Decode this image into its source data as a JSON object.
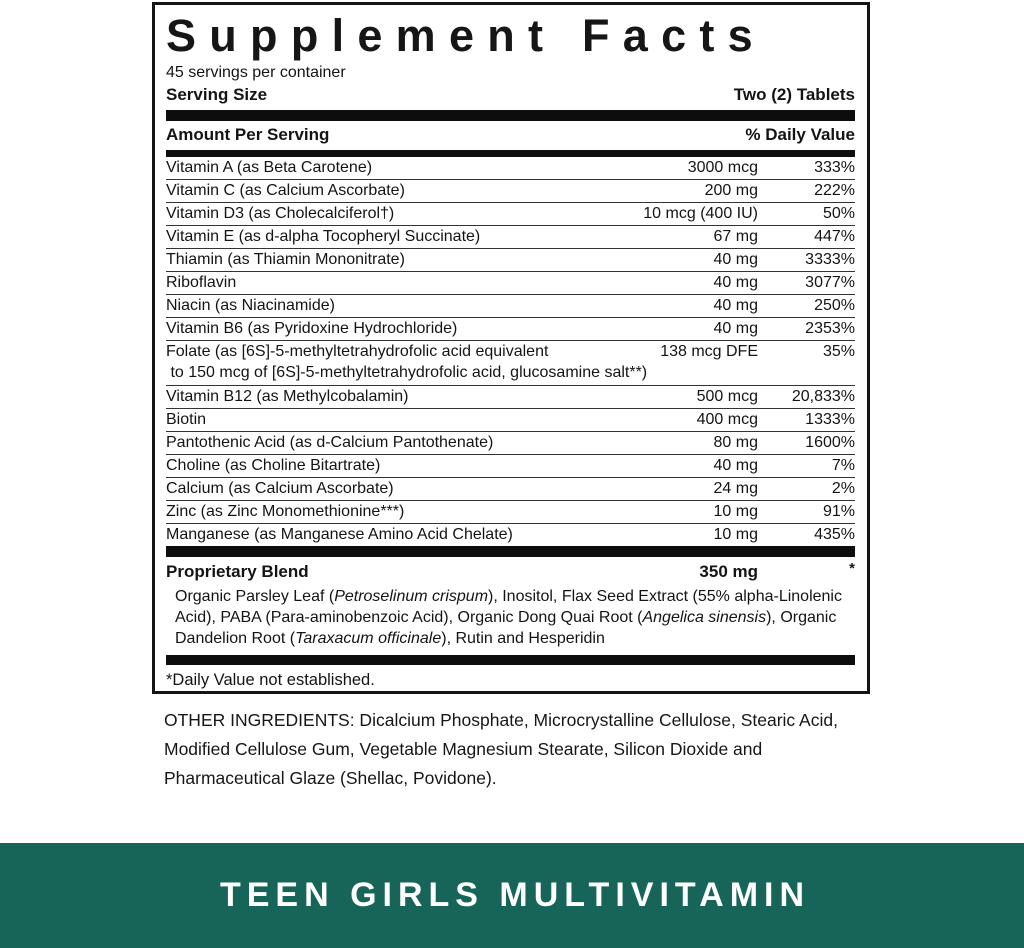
{
  "panel": {
    "title": "Supplement Facts",
    "servings_per_container": "45 servings per container",
    "serving_size_label": "Serving Size",
    "serving_size_value": "Two (2) Tablets",
    "amount_per_serving_header": "Amount Per Serving",
    "daily_value_header": "% Daily Value",
    "rows": [
      {
        "name": "Vitamin A (as Beta Carotene)",
        "amount": "3000 mcg",
        "dv": "333%"
      },
      {
        "name": "Vitamin C (as Calcium Ascorbate)",
        "amount": "200 mg",
        "dv": "222%"
      },
      {
        "name": "Vitamin D3 (as Cholecalciferol†)",
        "amount": "10 mcg (400 IU)",
        "dv": "50%"
      },
      {
        "name": "Vitamin E (as d-alpha Tocopheryl Succinate)",
        "amount": "67 mg",
        "dv": "447%"
      },
      {
        "name": "Thiamin (as Thiamin Mononitrate)",
        "amount": "40 mg",
        "dv": "3333%"
      },
      {
        "name": "Riboflavin",
        "amount": "40 mg",
        "dv": "3077%"
      },
      {
        "name": "Niacin (as Niacinamide)",
        "amount": "40 mg",
        "dv": "250%"
      },
      {
        "name": "Vitamin B6 (as Pyridoxine Hydrochloride)",
        "amount": "40 mg",
        "dv": "2353%"
      },
      {
        "name": "Folate (as [6S]-5-methyltetrahydrofolic acid equivalent",
        "name_line2": " to 150 mcg of [6S]-5-methyltetrahydrofolic acid, glucosamine salt**)",
        "amount": "138 mcg DFE",
        "dv": "35%"
      },
      {
        "name": "Vitamin B12 (as Methylcobalamin)",
        "amount": "500 mcg",
        "dv": "20,833%"
      },
      {
        "name": "Biotin",
        "amount": "400 mcg",
        "dv": "1333%"
      },
      {
        "name": "Pantothenic Acid (as d-Calcium Pantothenate)",
        "amount": "80 mg",
        "dv": "1600%"
      },
      {
        "name": "Choline (as Choline Bitartrate)",
        "amount": "40 mg",
        "dv": "7%"
      },
      {
        "name": "Calcium (as Calcium Ascorbate)",
        "amount": "24 mg",
        "dv": "2%"
      },
      {
        "name": "Zinc (as Zinc Monomethionine***)",
        "amount": "10 mg",
        "dv": "91%"
      },
      {
        "name": "Manganese (as Manganese Amino Acid Chelate)",
        "amount": "10 mg",
        "dv": "435%"
      }
    ],
    "proprietary_blend": {
      "label": "Proprietary Blend",
      "amount": "350 mg",
      "dv": "*",
      "description": [
        {
          "text": "Organic Parsley Leaf (",
          "italic": false
        },
        {
          "text": "Petroselinum crispum",
          "italic": true
        },
        {
          "text": "), Inositol, Flax Seed Extract (55% alpha-Linolenic Acid), PABA (Para-aminobenzoic Acid), Organic Dong Quai Root (",
          "italic": false
        },
        {
          "text": "Angelica sinensis",
          "italic": true
        },
        {
          "text": "), Organic Dandelion Root (",
          "italic": false
        },
        {
          "text": "Taraxacum officinale",
          "italic": true
        },
        {
          "text": "), Rutin and Hesperidin",
          "italic": false
        }
      ]
    },
    "footnote": "*Daily Value not established."
  },
  "other_ingredients": "OTHER INGREDIENTS: Dicalcium Phosphate, Microcrystalline Cellulose, Stearic Acid, Modified Cellulose Gum, Vegetable Magnesium Stearate, Silicon Dioxide and Pharmaceutical Glaze (Shellac, Povidone).",
  "banner": {
    "text": "TEEN GIRLS MULTIVITAMIN",
    "background_color": "#176458",
    "text_color": "#ffffff"
  }
}
